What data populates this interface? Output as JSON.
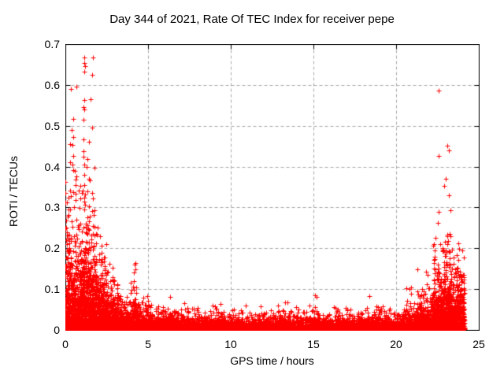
{
  "chart_data": {
    "type": "scatter",
    "title": "Day 344 of 2021, Rate Of TEC Index for receiver pepe",
    "xlabel": "GPS time / hours",
    "ylabel": "ROTI / TECUs",
    "xlim": [
      0,
      25
    ],
    "ylim": [
      0,
      0.7
    ],
    "xticks": [
      0,
      5,
      10,
      15,
      20,
      25
    ],
    "yticks": [
      0,
      0.1,
      0.2,
      0.3,
      0.4,
      0.5,
      0.6,
      0.7
    ],
    "xticklabels": [
      "0",
      "5",
      "10",
      "15",
      "20",
      "25"
    ],
    "yticklabels": [
      "0",
      "0.1",
      "0.2",
      "0.3",
      "0.4",
      "0.5",
      "0.6",
      "0.7"
    ],
    "grid": {
      "show": true,
      "style": "dashed",
      "color": "#a8a8a8",
      "dash": [
        4,
        3
      ]
    },
    "legend": "none",
    "marker": {
      "shape": "plus",
      "color": "#ff0000",
      "size": 7
    },
    "border_color": "#000000",
    "background": "#ffffff",
    "tick_length": 6,
    "seed": 2021344,
    "x_data_range": [
      0,
      24.15
    ],
    "segment_format": [
      "t_start_hours",
      "t_end_hours",
      "point_count",
      "exp_scale_TECU",
      "y_max_TECU"
    ],
    "density_segments": [
      [
        0.0,
        0.35,
        220,
        0.09,
        0.45
      ],
      [
        0.35,
        0.85,
        300,
        0.08,
        0.4
      ],
      [
        0.85,
        1.35,
        380,
        0.09,
        0.55
      ],
      [
        1.35,
        1.8,
        350,
        0.07,
        0.5
      ],
      [
        1.8,
        2.5,
        450,
        0.05,
        0.26
      ],
      [
        2.5,
        3.2,
        330,
        0.032,
        0.175
      ],
      [
        3.2,
        3.9,
        280,
        0.018,
        0.09
      ],
      [
        3.9,
        4.5,
        260,
        0.026,
        0.165
      ],
      [
        4.5,
        5.2,
        260,
        0.016,
        0.085
      ],
      [
        5.2,
        6.1,
        280,
        0.012,
        0.06
      ],
      [
        6.1,
        7.2,
        300,
        0.013,
        0.09
      ],
      [
        7.2,
        8.0,
        180,
        0.013,
        0.065
      ],
      [
        8.0,
        9.0,
        220,
        0.012,
        0.06
      ],
      [
        9.0,
        10.0,
        220,
        0.013,
        0.07
      ],
      [
        10.0,
        11.0,
        220,
        0.012,
        0.06
      ],
      [
        11.0,
        12.0,
        220,
        0.013,
        0.065
      ],
      [
        12.0,
        13.0,
        220,
        0.012,
        0.06
      ],
      [
        13.0,
        14.0,
        220,
        0.013,
        0.07
      ],
      [
        14.0,
        15.0,
        220,
        0.012,
        0.06
      ],
      [
        15.0,
        15.4,
        100,
        0.016,
        0.085
      ],
      [
        15.4,
        16.5,
        230,
        0.012,
        0.06
      ],
      [
        16.5,
        17.5,
        220,
        0.013,
        0.065
      ],
      [
        17.5,
        18.5,
        220,
        0.012,
        0.055
      ],
      [
        18.5,
        19.5,
        220,
        0.013,
        0.06
      ],
      [
        19.5,
        20.5,
        220,
        0.013,
        0.065
      ],
      [
        20.5,
        21.2,
        200,
        0.018,
        0.105
      ],
      [
        21.2,
        22.2,
        330,
        0.025,
        0.155
      ],
      [
        22.2,
        22.8,
        300,
        0.05,
        0.3
      ],
      [
        22.8,
        23.4,
        360,
        0.06,
        0.38
      ],
      [
        23.4,
        24.15,
        420,
        0.045,
        0.22
      ],
      [
        0.0,
        24.15,
        1200,
        0.007,
        0.025
      ]
    ],
    "outliers": [
      [
        0.33,
        0.59
      ],
      [
        0.67,
        0.596
      ],
      [
        1.14,
        0.667
      ],
      [
        1.67,
        0.667
      ],
      [
        1.14,
        0.654
      ],
      [
        1.19,
        0.646
      ],
      [
        1.14,
        0.633
      ],
      [
        1.62,
        0.625
      ],
      [
        1.52,
        0.565
      ],
      [
        1.14,
        0.563
      ],
      [
        1.1,
        0.546
      ],
      [
        0.48,
        0.517
      ],
      [
        1.1,
        0.514
      ],
      [
        1.62,
        0.496
      ],
      [
        0.38,
        0.49
      ],
      [
        0.48,
        0.473
      ],
      [
        0.29,
        0.456
      ],
      [
        0.43,
        0.454
      ],
      [
        1.1,
        0.437
      ],
      [
        0.48,
        0.427
      ],
      [
        1.1,
        0.425
      ],
      [
        0.3,
        0.41
      ],
      [
        0.45,
        0.405
      ],
      [
        1.14,
        0.404
      ],
      [
        0.48,
        0.392
      ],
      [
        0.57,
        0.389
      ],
      [
        0.02,
        0.363
      ],
      [
        0.62,
        0.354
      ],
      [
        1.14,
        0.354
      ],
      [
        0.02,
        0.335
      ],
      [
        4.2,
        0.16
      ],
      [
        4.25,
        0.148
      ],
      [
        4.15,
        0.14
      ],
      [
        2.86,
        0.152
      ],
      [
        6.35,
        0.081
      ],
      [
        13.45,
        0.068
      ],
      [
        15.1,
        0.085
      ],
      [
        18.4,
        0.083
      ],
      [
        20.9,
        0.104
      ],
      [
        22.57,
        0.587
      ],
      [
        23.08,
        0.452
      ],
      [
        23.17,
        0.44
      ],
      [
        22.57,
        0.427
      ],
      [
        23.0,
        0.37
      ],
      [
        22.9,
        0.352
      ],
      [
        23.2,
        0.33
      ],
      [
        22.55,
        0.29
      ],
      [
        22.5,
        0.262
      ],
      [
        21.3,
        0.148
      ]
    ]
  }
}
